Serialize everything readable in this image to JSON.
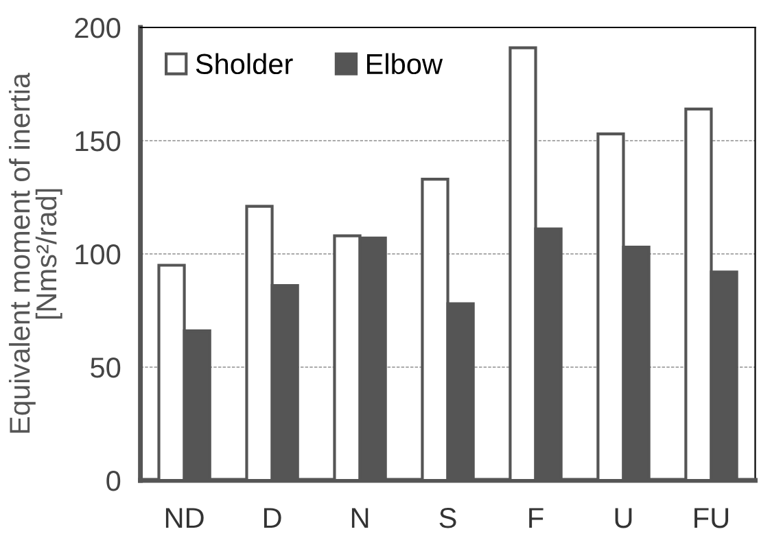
{
  "chart_data": {
    "type": "bar",
    "ylabel": "Equivalent moment of inertia\n[Nms²/rad]",
    "categories": [
      "ND",
      "D",
      "N",
      "S",
      "F",
      "U",
      "FU"
    ],
    "series": [
      {
        "name": "Sholder",
        "color": "#ffffff",
        "values": [
          95,
          121,
          108,
          133,
          191,
          153,
          164
        ]
      },
      {
        "name": "Elbow",
        "color": "#555555",
        "values": [
          66,
          86,
          107,
          78,
          111,
          103,
          92
        ]
      }
    ],
    "ylim": [
      0,
      200
    ],
    "yticks": [
      0,
      50,
      100,
      150,
      200
    ],
    "grid": "y",
    "legend": "top left"
  }
}
